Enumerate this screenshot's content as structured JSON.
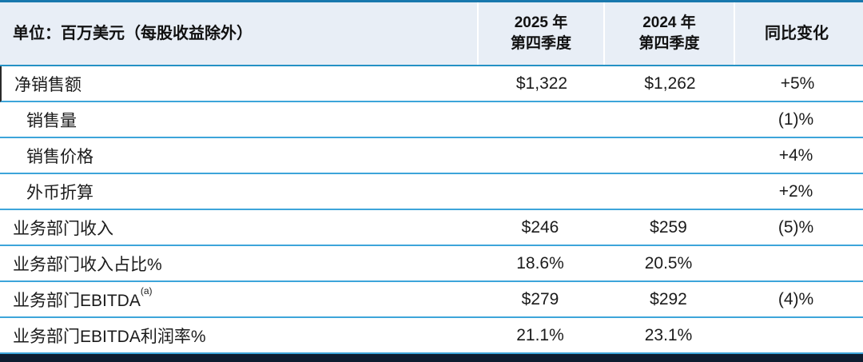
{
  "colors": {
    "top_line": "#1878AD",
    "header_bg": "#E8EEF6",
    "header_bottom_border": "#2591C4",
    "row_separator": "#3DA5DA",
    "footer_bar": "#0D1C2F",
    "text": "#1B1B1B"
  },
  "header": {
    "unit_label": "单位：百万美元（每股收益除外）",
    "col_2025": {
      "line1": "2025 年",
      "line2": "第四季度"
    },
    "col_2024": {
      "line1": "2024 年",
      "line2": "第四季度"
    },
    "col_yoy": "同比变化"
  },
  "rows": [
    {
      "label": "净销售额",
      "v2025": "$1,322",
      "v2024": "$1,262",
      "yoy": "+5%"
    },
    {
      "label": "销售量",
      "v2025": "",
      "v2024": "",
      "yoy": "(1)%"
    },
    {
      "label": "销售价格",
      "v2025": "",
      "v2024": "",
      "yoy": "+4%"
    },
    {
      "label": "外币折算",
      "v2025": "",
      "v2024": "",
      "yoy": "+2%"
    },
    {
      "label": "业务部门收入",
      "v2025": "$246",
      "v2024": "$259",
      "yoy": "(5)%"
    },
    {
      "label": "业务部门收入占比%",
      "v2025": "18.6%",
      "v2024": "20.5%",
      "yoy": ""
    },
    {
      "label": "业务部门EBITDA",
      "sup": "(a)",
      "v2025": "$279",
      "v2024": "$292",
      "yoy": "(4)%"
    },
    {
      "label": "业务部门EBITDA利润率%",
      "v2025": "21.1%",
      "v2024": "23.1%",
      "yoy": ""
    }
  ]
}
